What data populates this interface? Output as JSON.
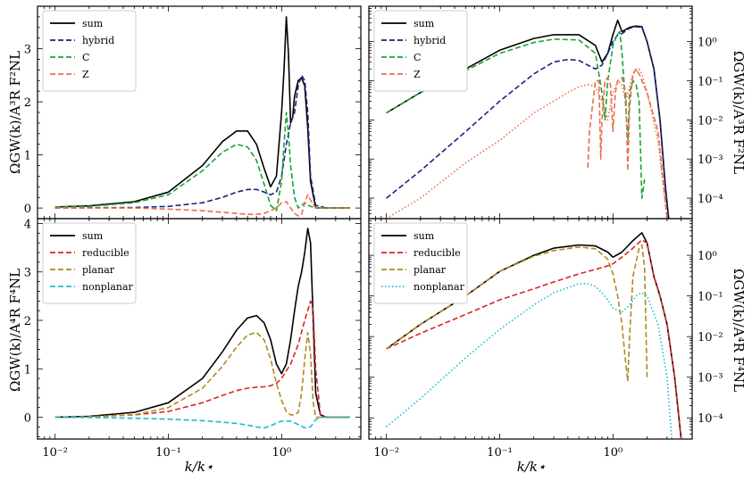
{
  "figure": {
    "xlabel": "k/k⋆",
    "ylabel_top": "ΩGW(k)/A³R F²NL",
    "ylabel_bottom": "ΩGW(k)/A⁴R F⁴NL",
    "xticks": [
      "10⁻²",
      "10⁻¹",
      "10⁰"
    ],
    "lin_yticks_top": [
      "0",
      "1",
      "2",
      "3"
    ],
    "lin_yticks_bottom": [
      "0",
      "1",
      "2",
      "3",
      "4"
    ],
    "log_yticks": [
      "10⁰",
      "10⁻¹",
      "10⁻²",
      "10⁻³",
      "10⁻⁴"
    ]
  },
  "chart_data": [
    {
      "panel": "top-left",
      "type": "line",
      "xscale": "log",
      "yscale": "linear",
      "xlim": [
        0.007,
        5
      ],
      "ylim": [
        -0.2,
        3.8
      ],
      "xlabel": "",
      "ylabel": "ΩGW(k)/A³R F²NL",
      "legend": {
        "position": "top-left",
        "entries": [
          "sum",
          "hybrid",
          "C",
          "Z"
        ]
      },
      "series": [
        {
          "name": "sum",
          "color": "#000000",
          "dash": "solid",
          "x": [
            0.01,
            0.02,
            0.05,
            0.1,
            0.2,
            0.3,
            0.4,
            0.5,
            0.6,
            0.7,
            0.8,
            0.9,
            1.0,
            1.05,
            1.1,
            1.15,
            1.2,
            1.25,
            1.3,
            1.4,
            1.5,
            1.6,
            1.7,
            1.8,
            2.0,
            2.5,
            3,
            4
          ],
          "y": [
            0.02,
            0.04,
            0.12,
            0.3,
            0.8,
            1.25,
            1.45,
            1.45,
            1.2,
            0.75,
            0.4,
            0.6,
            1.8,
            2.6,
            3.6,
            2.9,
            1.6,
            1.7,
            2.1,
            2.4,
            2.45,
            2.3,
            1.5,
            0.5,
            0.0,
            0.0,
            0.0,
            0.0
          ]
        },
        {
          "name": "hybrid",
          "color": "#1a237e",
          "dash": "dashed",
          "x": [
            0.01,
            0.05,
            0.1,
            0.2,
            0.3,
            0.4,
            0.5,
            0.6,
            0.7,
            0.8,
            0.9,
            1.0,
            1.1,
            1.2,
            1.3,
            1.4,
            1.5,
            1.6,
            1.7,
            1.8,
            2.0,
            2.5,
            3,
            4
          ],
          "y": [
            0.0,
            0.01,
            0.03,
            0.1,
            0.2,
            0.3,
            0.35,
            0.35,
            0.3,
            0.25,
            0.3,
            0.6,
            1.2,
            1.6,
            1.8,
            2.3,
            2.5,
            2.4,
            1.8,
            0.6,
            0.05,
            0.0,
            0.0,
            0.0
          ]
        },
        {
          "name": "C",
          "color": "#1aa337",
          "dash": "dashed",
          "x": [
            0.01,
            0.02,
            0.05,
            0.1,
            0.2,
            0.3,
            0.4,
            0.5,
            0.6,
            0.7,
            0.8,
            0.9,
            1.0,
            1.05,
            1.1,
            1.15,
            1.2,
            1.3,
            1.4,
            1.5,
            1.6,
            1.7,
            2.0,
            3,
            4
          ],
          "y": [
            0.02,
            0.03,
            0.1,
            0.25,
            0.7,
            1.05,
            1.2,
            1.15,
            0.9,
            0.45,
            0.05,
            -0.05,
            0.5,
            1.2,
            1.8,
            1.4,
            0.8,
            0.2,
            0.0,
            0.05,
            0.1,
            0.05,
            0.0,
            0.0,
            0.0
          ]
        },
        {
          "name": "Z",
          "color": "#e8704a",
          "dash": "dashed",
          "x": [
            0.01,
            0.05,
            0.1,
            0.2,
            0.3,
            0.4,
            0.5,
            0.6,
            0.7,
            0.8,
            0.9,
            1.0,
            1.1,
            1.2,
            1.3,
            1.4,
            1.5,
            1.6,
            1.7,
            1.8,
            2.0,
            3,
            4
          ],
          "y": [
            0.0,
            0.0,
            -0.02,
            -0.05,
            -0.08,
            -0.1,
            -0.12,
            -0.12,
            -0.1,
            -0.05,
            0.0,
            0.1,
            0.12,
            0.0,
            -0.1,
            -0.15,
            -0.12,
            0.1,
            0.25,
            0.15,
            0.0,
            0.0,
            0.0
          ]
        }
      ]
    },
    {
      "panel": "top-right",
      "type": "line",
      "xscale": "log",
      "yscale": "log",
      "xlim": [
        0.007,
        5
      ],
      "ylim": [
        3e-05,
        8
      ],
      "xlabel": "",
      "ylabel": "ΩGW(k)/A³R F²NL",
      "legend": {
        "position": "top-left",
        "entries": [
          "sum",
          "hybrid",
          "C",
          "Z"
        ]
      },
      "series": [
        {
          "name": "sum",
          "color": "#000000",
          "dash": "solid",
          "x": [
            0.01,
            0.02,
            0.05,
            0.1,
            0.2,
            0.3,
            0.5,
            0.7,
            0.8,
            0.9,
            1.0,
            1.1,
            1.2,
            1.4,
            1.6,
            1.8,
            2.0,
            2.3,
            2.6,
            2.9,
            3.1
          ],
          "y": [
            0.015,
            0.05,
            0.2,
            0.6,
            1.2,
            1.5,
            1.5,
            0.8,
            0.3,
            0.5,
            1.5,
            3.5,
            1.8,
            2.3,
            2.5,
            2.4,
            1.0,
            0.2,
            0.01,
            0.0002,
            3e-05
          ]
        },
        {
          "name": "hybrid",
          "color": "#1a237e",
          "dash": "dashed",
          "x": [
            0.01,
            0.02,
            0.05,
            0.1,
            0.2,
            0.3,
            0.4,
            0.5,
            0.6,
            0.7,
            0.8,
            0.9,
            1.0,
            1.1,
            1.2,
            1.4,
            1.6,
            1.8,
            2.0,
            2.3,
            2.6,
            2.9,
            3.1
          ],
          "y": [
            0.0001,
            0.0005,
            0.005,
            0.03,
            0.15,
            0.3,
            0.35,
            0.33,
            0.25,
            0.2,
            0.25,
            0.5,
            1.0,
            1.5,
            1.6,
            2.2,
            2.4,
            2.3,
            1.0,
            0.2,
            0.01,
            0.0002,
            3e-05
          ]
        },
        {
          "name": "C",
          "color": "#1aa337",
          "dash": "dashed",
          "x": [
            0.01,
            0.02,
            0.05,
            0.1,
            0.2,
            0.3,
            0.5,
            0.7,
            0.8,
            0.85,
            0.9,
            1.0,
            1.1,
            1.15,
            1.2,
            1.3,
            1.35,
            1.4,
            1.5,
            1.6,
            1.7,
            1.8,
            1.9
          ],
          "y": [
            0.015,
            0.05,
            0.18,
            0.5,
            0.95,
            1.15,
            1.1,
            0.5,
            0.05,
            0.01,
            0.1,
            0.8,
            1.6,
            1.8,
            0.5,
            0.02,
            0.003,
            0.05,
            0.1,
            0.08,
            0.03,
            0.0001,
            0.0003
          ]
        },
        {
          "name": "Z",
          "color": "#e8704a",
          "dash": "dashed",
          "x": [
            0.6,
            0.62,
            0.7,
            0.75,
            0.78,
            0.8,
            0.85,
            0.9,
            0.95,
            1.0,
            1.05,
            1.1,
            1.2,
            1.3,
            1.35,
            1.4,
            1.5,
            1.6,
            1.7,
            1.8,
            2.0,
            2.5,
            3.0
          ],
          "y": [
            0.0006,
            0.005,
            0.1,
            0.1,
            0.001,
            0.01,
            0.1,
            0.12,
            0.08,
            0.005,
            0.05,
            0.1,
            0.12,
            0.05,
            0.0005,
            0.02,
            0.15,
            0.2,
            0.15,
            0.1,
            0.05,
            0.005,
            3e-05
          ]
        },
        {
          "name": "",
          "color": "#e8704a",
          "dash": "dotted",
          "x": [
            0.01,
            0.02,
            0.05,
            0.1,
            0.2,
            0.3,
            0.4,
            0.5,
            0.6,
            0.7,
            0.8,
            0.9,
            1.0,
            1.1,
            1.2,
            1.3,
            1.5,
            1.7,
            1.8,
            2.0,
            2.5,
            3.0
          ],
          "y": [
            3e-05,
            0.0001,
            0.0008,
            0.003,
            0.015,
            0.03,
            0.05,
            0.07,
            0.08,
            0.07,
            0.03,
            0.01,
            0.05,
            0.1,
            0.08,
            0.03,
            0.15,
            0.2,
            0.15,
            0.05,
            0.003,
            3e-05
          ]
        }
      ]
    },
    {
      "panel": "bottom-left",
      "type": "line",
      "xscale": "log",
      "yscale": "linear",
      "xlim": [
        0.007,
        5
      ],
      "ylim": [
        -0.45,
        4.1
      ],
      "xlabel": "k/k⋆",
      "ylabel": "ΩGW(k)/A⁴R F⁴NL",
      "legend": {
        "position": "top-left",
        "entries": [
          "sum",
          "reducible",
          "planar",
          "nonplanar"
        ]
      },
      "series": [
        {
          "name": "sum",
          "color": "#000000",
          "dash": "solid",
          "x": [
            0.01,
            0.02,
            0.05,
            0.1,
            0.2,
            0.3,
            0.4,
            0.5,
            0.6,
            0.7,
            0.8,
            0.9,
            1.0,
            1.1,
            1.2,
            1.3,
            1.4,
            1.5,
            1.6,
            1.7,
            1.8,
            1.9,
            2.0,
            2.2,
            2.5,
            3,
            4
          ],
          "y": [
            0.0,
            0.02,
            0.1,
            0.3,
            0.8,
            1.35,
            1.8,
            2.05,
            2.1,
            1.95,
            1.6,
            1.1,
            0.9,
            1.1,
            1.6,
            2.2,
            2.7,
            3.0,
            3.4,
            3.9,
            3.6,
            2.0,
            0.5,
            0.05,
            0.0,
            0.0,
            0.0
          ]
        },
        {
          "name": "reducible",
          "color": "#d62728",
          "dash": "dashed",
          "x": [
            0.01,
            0.02,
            0.05,
            0.1,
            0.2,
            0.3,
            0.4,
            0.5,
            0.6,
            0.7,
            0.8,
            0.9,
            1.0,
            1.2,
            1.4,
            1.6,
            1.8,
            1.9,
            2.0,
            2.2,
            2.5,
            3,
            4
          ],
          "y": [
            0.0,
            0.01,
            0.05,
            0.12,
            0.3,
            0.45,
            0.55,
            0.6,
            0.62,
            0.63,
            0.65,
            0.7,
            0.8,
            1.1,
            1.5,
            2.0,
            2.4,
            2.2,
            1.0,
            0.05,
            0.0,
            0.0,
            0.0
          ]
        },
        {
          "name": "planar",
          "color": "#b08a1e",
          "dash": "dashed",
          "x": [
            0.01,
            0.02,
            0.05,
            0.1,
            0.2,
            0.3,
            0.4,
            0.5,
            0.6,
            0.7,
            0.8,
            0.9,
            1.0,
            1.1,
            1.2,
            1.3,
            1.4,
            1.5,
            1.6,
            1.7,
            1.8,
            1.9,
            2.0,
            2.2,
            2.5,
            3,
            4
          ],
          "y": [
            0.0,
            0.01,
            0.05,
            0.2,
            0.6,
            1.05,
            1.45,
            1.7,
            1.75,
            1.6,
            1.2,
            0.7,
            0.35,
            0.12,
            0.05,
            0.05,
            0.1,
            0.5,
            1.2,
            1.75,
            1.3,
            0.3,
            0.0,
            0.0,
            0.0,
            0.0,
            0.0
          ]
        },
        {
          "name": "nonplanar",
          "color": "#17becf",
          "dash": "dashed",
          "x": [
            0.01,
            0.02,
            0.05,
            0.1,
            0.2,
            0.3,
            0.4,
            0.5,
            0.6,
            0.7,
            0.8,
            0.9,
            1.0,
            1.2,
            1.4,
            1.6,
            1.8,
            2.0,
            2.2,
            2.5,
            3,
            4
          ],
          "y": [
            0.0,
            -0.005,
            -0.02,
            -0.04,
            -0.07,
            -0.1,
            -0.13,
            -0.16,
            -0.2,
            -0.22,
            -0.18,
            -0.12,
            -0.08,
            -0.08,
            -0.15,
            -0.22,
            -0.2,
            -0.05,
            0.0,
            0.0,
            0.0,
            0.0
          ]
        }
      ]
    },
    {
      "panel": "bottom-right",
      "type": "line",
      "xscale": "log",
      "yscale": "log",
      "xlim": [
        0.007,
        5
      ],
      "ylim": [
        3e-05,
        8
      ],
      "xlabel": "k/k⋆",
      "ylabel": "ΩGW(k)/A⁴R F⁴NL",
      "legend": {
        "position": "top-left",
        "entries": [
          "sum",
          "reducible",
          "planar",
          "nonplanar"
        ]
      },
      "series": [
        {
          "name": "sum",
          "color": "#000000",
          "dash": "solid",
          "x": [
            0.01,
            0.02,
            0.05,
            0.1,
            0.2,
            0.3,
            0.5,
            0.7,
            0.9,
            1.0,
            1.2,
            1.5,
            1.8,
            2.0,
            2.3,
            2.6,
            3.0,
            3.5,
            4.0
          ],
          "y": [
            0.005,
            0.02,
            0.1,
            0.4,
            1.0,
            1.5,
            1.8,
            1.7,
            1.2,
            0.9,
            1.2,
            2.3,
            3.6,
            2.0,
            0.3,
            0.1,
            0.02,
            0.001,
            3e-05
          ]
        },
        {
          "name": "reducible",
          "color": "#d62728",
          "dash": "dashed",
          "x": [
            0.01,
            0.02,
            0.05,
            0.1,
            0.2,
            0.3,
            0.5,
            0.7,
            0.9,
            1.0,
            1.2,
            1.5,
            1.8,
            2.0,
            2.3,
            2.6,
            3.0,
            3.5,
            4.0
          ],
          "y": [
            0.005,
            0.012,
            0.035,
            0.08,
            0.15,
            0.22,
            0.35,
            0.45,
            0.55,
            0.62,
            0.9,
            1.5,
            2.4,
            2.0,
            0.3,
            0.1,
            0.02,
            0.001,
            3e-05
          ]
        },
        {
          "name": "planar",
          "color": "#b08a1e",
          "dash": "dashed",
          "x": [
            0.01,
            0.02,
            0.05,
            0.1,
            0.2,
            0.3,
            0.5,
            0.7,
            0.9,
            1.0,
            1.1,
            1.2,
            1.3,
            1.35,
            1.4,
            1.5,
            1.7,
            1.8,
            1.9,
            2.0
          ],
          "y": [
            0.005,
            0.02,
            0.1,
            0.4,
            0.95,
            1.3,
            1.6,
            1.45,
            0.8,
            0.35,
            0.1,
            0.02,
            0.002,
            0.0008,
            0.01,
            0.3,
            1.5,
            1.8,
            0.5,
            0.001
          ]
        },
        {
          "name": "nonplanar",
          "color": "#17becf",
          "dash": "dotted",
          "x": [
            0.01,
            0.02,
            0.05,
            0.1,
            0.2,
            0.3,
            0.5,
            0.6,
            0.7,
            0.8,
            0.9,
            1.0,
            1.2,
            1.4,
            1.6,
            1.8,
            2.0,
            2.5,
            3.0,
            3.3
          ],
          "y": [
            6e-05,
            0.0003,
            0.003,
            0.015,
            0.06,
            0.12,
            0.2,
            0.2,
            0.17,
            0.12,
            0.08,
            0.05,
            0.04,
            0.06,
            0.1,
            0.12,
            0.1,
            0.02,
            0.001,
            3e-05
          ]
        }
      ]
    }
  ]
}
